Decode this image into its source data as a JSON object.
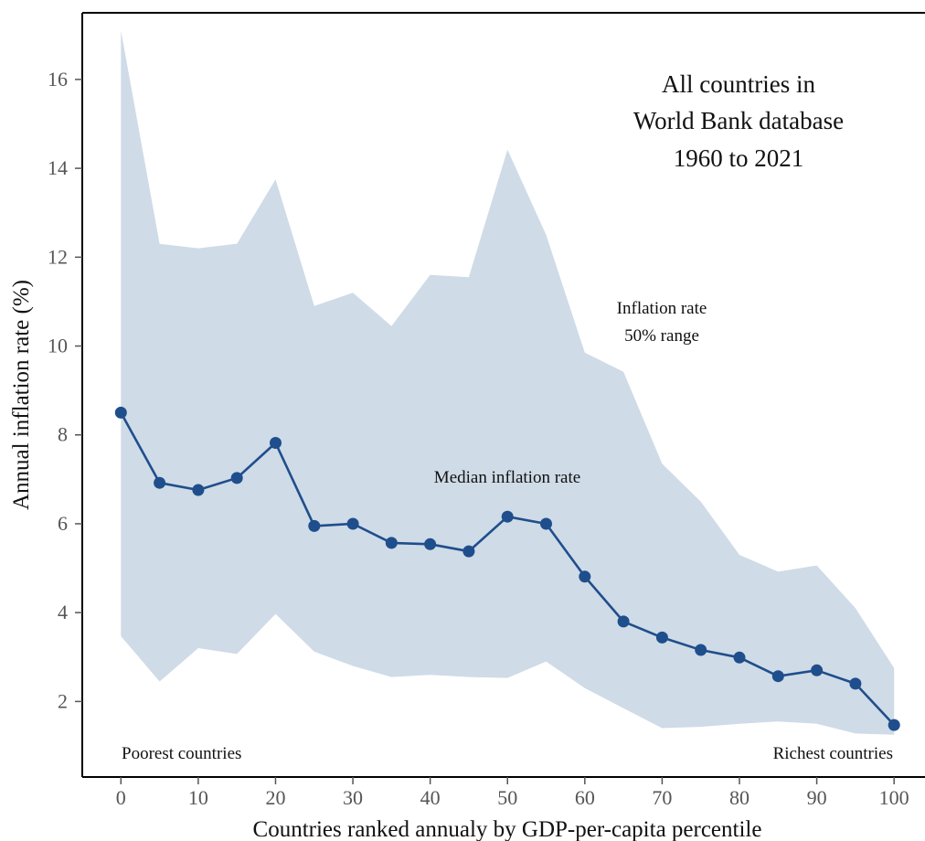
{
  "chart_data": {
    "type": "line",
    "xlabel": "Countries ranked annualy by GDP-per-capita percentile",
    "ylabel": "Annual inflation rate (%)",
    "xlim": [
      -5,
      104
    ],
    "ylim": [
      0.3,
      17.5
    ],
    "x_ticks": [
      0,
      10,
      20,
      30,
      40,
      50,
      60,
      70,
      80,
      90,
      100
    ],
    "y_ticks": [
      2,
      4,
      6,
      8,
      10,
      12,
      14,
      16
    ],
    "x": [
      0,
      5,
      10,
      15,
      20,
      25,
      30,
      35,
      40,
      45,
      50,
      55,
      60,
      65,
      70,
      75,
      80,
      85,
      90,
      95,
      100
    ],
    "series": [
      {
        "name": "Median inflation rate",
        "values": [
          8.5,
          6.92,
          6.76,
          7.03,
          7.82,
          5.95,
          6.0,
          5.57,
          5.54,
          5.38,
          6.16,
          6.0,
          4.81,
          3.8,
          3.44,
          3.16,
          2.99,
          2.57,
          2.7,
          2.4,
          1.47
        ],
        "color": "#1f4e8c"
      }
    ],
    "range_band": {
      "name": "Inflation rate 50% range",
      "upper": [
        17.1,
        12.3,
        12.2,
        12.3,
        13.75,
        10.9,
        11.2,
        10.45,
        11.6,
        11.55,
        14.42,
        12.5,
        9.85,
        9.42,
        7.35,
        6.5,
        5.3,
        4.92,
        5.06,
        4.1,
        2.75
      ],
      "lower": [
        3.47,
        2.45,
        3.2,
        3.07,
        3.97,
        3.12,
        2.8,
        2.55,
        2.6,
        2.55,
        2.53,
        2.9,
        2.3,
        1.85,
        1.4,
        1.43,
        1.5,
        1.55,
        1.5,
        1.28,
        1.25
      ],
      "color": "#cfdbe7"
    },
    "annotations": {
      "box_line1": "All countries in",
      "box_line2": "World Bank database",
      "box_line3": "1960 to 2021",
      "range_line1": "Inflation rate",
      "range_line2": "50% range",
      "median_label": "Median inflation rate",
      "poorest_label": "Poorest countries",
      "richest_label": "Richest countries"
    },
    "grid": false
  }
}
